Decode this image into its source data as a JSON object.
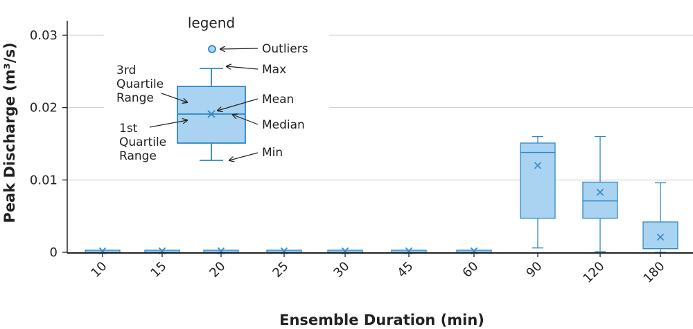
{
  "chart_data": {
    "type": "box",
    "xlabel": "Ensemble Duration (min)",
    "ylabel": "Peak Discharge  (m³/s)",
    "ylim": [
      0,
      0.0305
    ],
    "yticks": [
      "0",
      "0.01",
      "0.02",
      "0.03"
    ],
    "ytick_values": [
      0,
      0.01,
      0.02,
      0.03
    ],
    "grid": "horizontal",
    "categories": [
      "10",
      "15",
      "20",
      "25",
      "30",
      "45",
      "60",
      "90",
      "120",
      "180"
    ],
    "boxes": [
      {
        "min": 0,
        "q1": 0,
        "median": 0,
        "q3": 0.0002,
        "max": 0.0002,
        "mean": 0.0001
      },
      {
        "min": 0,
        "q1": 0,
        "median": 0,
        "q3": 0.0002,
        "max": 0.0002,
        "mean": 0.0001
      },
      {
        "min": 0,
        "q1": 0,
        "median": 0,
        "q3": 0.0002,
        "max": 0.0002,
        "mean": 0.0001
      },
      {
        "min": 0,
        "q1": 0,
        "median": 0,
        "q3": 0.0002,
        "max": 0.0002,
        "mean": 0.0001
      },
      {
        "min": 0,
        "q1": 0,
        "median": 0,
        "q3": 0.0002,
        "max": 0.0002,
        "mean": 0.0001
      },
      {
        "min": 0,
        "q1": 0,
        "median": 0,
        "q3": 0.0002,
        "max": 0.0002,
        "mean": 0.0001
      },
      {
        "min": 0,
        "q1": 0,
        "median": 0,
        "q3": 0.0002,
        "max": 0.0002,
        "mean": 0.0001
      },
      {
        "min": 0.0006,
        "q1": 0.0047,
        "median": 0.0138,
        "q3": 0.0151,
        "max": 0.016,
        "mean": 0.012
      },
      {
        "min": 0.0001,
        "q1": 0.0047,
        "median": 0.0071,
        "q3": 0.0097,
        "max": 0.016,
        "mean": 0.0083
      },
      {
        "min": 0,
        "q1": 0.0005,
        "median": 0.0005,
        "q3": 0.0042,
        "max": 0.0096,
        "mean": 0.0021
      }
    ],
    "colors": {
      "fill": "#a9d3f0",
      "stroke": "#2e87c5",
      "grid": "#cccccc",
      "axis": "#222222"
    }
  },
  "legend": {
    "title": "legend",
    "outliers": "Outliers",
    "max": "Max",
    "q3": [
      "3rd",
      "Quartile",
      "Range"
    ],
    "mean": "Mean",
    "median": "Median",
    "q1": [
      "1st",
      "Quartile",
      "Range"
    ],
    "min": "Min"
  }
}
